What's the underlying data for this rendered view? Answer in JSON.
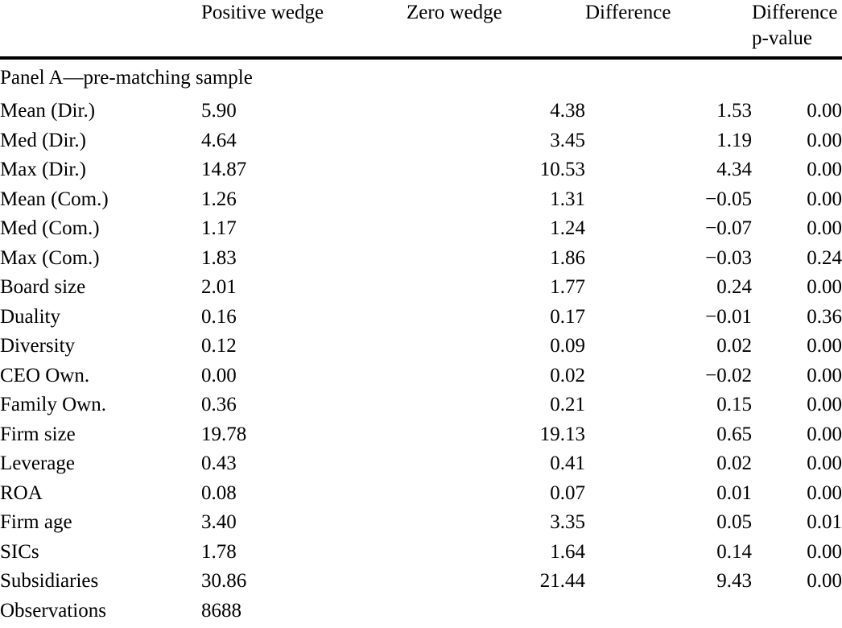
{
  "table": {
    "headers": [
      {
        "label": ""
      },
      {
        "label": "Positive wedge"
      },
      {
        "label": "Zero wedge"
      },
      {
        "label": "Difference"
      },
      {
        "label": "Difference",
        "label_line2": "p-value"
      }
    ],
    "panel_label": "Panel A—pre-matching sample",
    "rows": [
      {
        "label": "Mean (Dir.)",
        "positive_wedge": "5.90",
        "zero_wedge": "4.38",
        "difference": "1.53",
        "p_value": "0.00"
      },
      {
        "label": "Med (Dir.)",
        "positive_wedge": "4.64",
        "zero_wedge": "3.45",
        "difference": "1.19",
        "p_value": "0.00"
      },
      {
        "label": "Max (Dir.)",
        "positive_wedge": "14.87",
        "zero_wedge": "10.53",
        "difference": "4.34",
        "p_value": "0.00"
      },
      {
        "label": "Mean (Com.)",
        "positive_wedge": "1.26",
        "zero_wedge": "1.31",
        "difference": "−0.05",
        "p_value": "0.00"
      },
      {
        "label": "Med (Com.)",
        "positive_wedge": "1.17",
        "zero_wedge": "1.24",
        "difference": "−0.07",
        "p_value": "0.00"
      },
      {
        "label": "Max (Com.)",
        "positive_wedge": "1.83",
        "zero_wedge": "1.86",
        "difference": "−0.03",
        "p_value": "0.24"
      },
      {
        "label": "Board size",
        "positive_wedge": "2.01",
        "zero_wedge": "1.77",
        "difference": "0.24",
        "p_value": "0.00"
      },
      {
        "label": "Duality",
        "positive_wedge": "0.16",
        "zero_wedge": "0.17",
        "difference": "−0.01",
        "p_value": "0.36"
      },
      {
        "label": "Diversity",
        "positive_wedge": "0.12",
        "zero_wedge": "0.09",
        "difference": "0.02",
        "p_value": "0.00"
      },
      {
        "label": "CEO Own.",
        "positive_wedge": "0.00",
        "zero_wedge": "0.02",
        "difference": "−0.02",
        "p_value": "0.00"
      },
      {
        "label": "Family Own.",
        "positive_wedge": "0.36",
        "zero_wedge": "0.21",
        "difference": "0.15",
        "p_value": "0.00"
      },
      {
        "label": "Firm size",
        "positive_wedge": "19.78",
        "zero_wedge": "19.13",
        "difference": "0.65",
        "p_value": "0.00"
      },
      {
        "label": "Leverage",
        "positive_wedge": "0.43",
        "zero_wedge": "0.41",
        "difference": "0.02",
        "p_value": "0.00"
      },
      {
        "label": "ROA",
        "positive_wedge": "0.08",
        "zero_wedge": "0.07",
        "difference": "0.01",
        "p_value": "0.00"
      },
      {
        "label": "Firm age",
        "positive_wedge": "3.40",
        "zero_wedge": "3.35",
        "difference": "0.05",
        "p_value": "0.01"
      },
      {
        "label": "SICs",
        "positive_wedge": "1.78",
        "zero_wedge": "1.64",
        "difference": "0.14",
        "p_value": "0.00"
      },
      {
        "label": "Subsidiaries",
        "positive_wedge": "30.86",
        "zero_wedge": "21.44",
        "difference": "9.43",
        "p_value": "0.00"
      },
      {
        "label": "Observations",
        "positive_wedge": "8688",
        "zero_wedge": "",
        "difference": "",
        "p_value": ""
      }
    ]
  }
}
